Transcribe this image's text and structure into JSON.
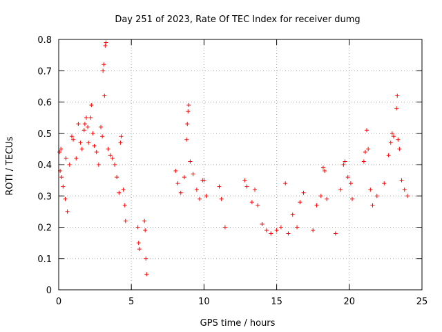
{
  "chart_data": {
    "type": "scatter",
    "title": "Day 251 of 2023, Rate Of TEC Index for receiver dumg",
    "xlabel": "GPS time / hours",
    "ylabel": "ROTI / TECUs",
    "xlim": [
      0,
      25
    ],
    "ylim": [
      0,
      0.8
    ],
    "xticks": [
      0,
      5,
      10,
      15,
      20,
      25
    ],
    "yticks": [
      0,
      0.1,
      0.2,
      0.3,
      0.4,
      0.5,
      0.6,
      0.7,
      0.8
    ],
    "xtick_labels": [
      "0",
      "5",
      "10",
      "15",
      "20",
      "25"
    ],
    "ytick_labels": [
      "0",
      "0.1",
      "0.2",
      "0.3",
      "0.4",
      "0.5",
      "0.6",
      "0.7",
      "0.8"
    ],
    "grid": true,
    "marker": "+",
    "marker_color": "#ff0000",
    "series": [
      {
        "points": [
          [
            0.05,
            0.44
          ],
          [
            0.1,
            0.38
          ],
          [
            0.15,
            0.45
          ],
          [
            0.2,
            0.36
          ],
          [
            0.3,
            0.33
          ],
          [
            0.45,
            0.29
          ],
          [
            0.6,
            0.25
          ],
          [
            0.5,
            0.42
          ],
          [
            0.75,
            0.4
          ],
          [
            0.9,
            0.49
          ],
          [
            1.0,
            0.48
          ],
          [
            1.2,
            0.42
          ],
          [
            1.35,
            0.53
          ],
          [
            1.5,
            0.47
          ],
          [
            1.6,
            0.45
          ],
          [
            1.75,
            0.51
          ],
          [
            1.8,
            0.53
          ],
          [
            1.9,
            0.55
          ],
          [
            2.0,
            0.52
          ],
          [
            2.05,
            0.47
          ],
          [
            2.2,
            0.55
          ],
          [
            2.25,
            0.59
          ],
          [
            2.35,
            0.5
          ],
          [
            2.45,
            0.46
          ],
          [
            2.6,
            0.44
          ],
          [
            2.75,
            0.4
          ],
          [
            2.9,
            0.52
          ],
          [
            3.0,
            0.49
          ],
          [
            3.05,
            0.7
          ],
          [
            3.1,
            0.72
          ],
          [
            3.15,
            0.62
          ],
          [
            3.2,
            0.78
          ],
          [
            3.25,
            0.79
          ],
          [
            3.4,
            0.45
          ],
          [
            3.55,
            0.43
          ],
          [
            3.7,
            0.42
          ],
          [
            3.85,
            0.4
          ],
          [
            4.0,
            0.36
          ],
          [
            4.15,
            0.31
          ],
          [
            4.25,
            0.47
          ],
          [
            4.3,
            0.49
          ],
          [
            4.45,
            0.32
          ],
          [
            4.55,
            0.27
          ],
          [
            4.6,
            0.22
          ],
          [
            5.45,
            0.2
          ],
          [
            5.5,
            0.15
          ],
          [
            5.55,
            0.13
          ],
          [
            5.9,
            0.22
          ],
          [
            5.95,
            0.19
          ],
          [
            6.0,
            0.1
          ],
          [
            6.05,
            0.05
          ],
          [
            8.05,
            0.38
          ],
          [
            8.2,
            0.34
          ],
          [
            8.4,
            0.31
          ],
          [
            8.65,
            0.36
          ],
          [
            8.8,
            0.48
          ],
          [
            8.85,
            0.53
          ],
          [
            8.9,
            0.57
          ],
          [
            8.95,
            0.59
          ],
          [
            9.05,
            0.41
          ],
          [
            9.25,
            0.37
          ],
          [
            9.5,
            0.32
          ],
          [
            9.7,
            0.29
          ],
          [
            9.9,
            0.35
          ],
          [
            10.0,
            0.35
          ],
          [
            10.15,
            0.3
          ],
          [
            11.05,
            0.33
          ],
          [
            11.2,
            0.29
          ],
          [
            11.45,
            0.2
          ],
          [
            12.8,
            0.35
          ],
          [
            12.95,
            0.33
          ],
          [
            13.3,
            0.28
          ],
          [
            13.5,
            0.32
          ],
          [
            13.7,
            0.27
          ],
          [
            14.0,
            0.21
          ],
          [
            14.3,
            0.19
          ],
          [
            14.6,
            0.18
          ],
          [
            15.0,
            0.19
          ],
          [
            15.3,
            0.2
          ],
          [
            15.6,
            0.34
          ],
          [
            15.8,
            0.18
          ],
          [
            16.1,
            0.24
          ],
          [
            16.4,
            0.2
          ],
          [
            16.6,
            0.28
          ],
          [
            16.85,
            0.31
          ],
          [
            17.5,
            0.19
          ],
          [
            17.75,
            0.27
          ],
          [
            18.05,
            0.3
          ],
          [
            18.2,
            0.39
          ],
          [
            18.3,
            0.38
          ],
          [
            18.45,
            0.29
          ],
          [
            19.05,
            0.18
          ],
          [
            19.4,
            0.32
          ],
          [
            19.6,
            0.4
          ],
          [
            19.7,
            0.41
          ],
          [
            19.9,
            0.36
          ],
          [
            20.1,
            0.34
          ],
          [
            20.2,
            0.29
          ],
          [
            21.0,
            0.41
          ],
          [
            21.1,
            0.44
          ],
          [
            21.2,
            0.51
          ],
          [
            21.3,
            0.45
          ],
          [
            21.45,
            0.32
          ],
          [
            21.6,
            0.27
          ],
          [
            21.9,
            0.3
          ],
          [
            22.4,
            0.34
          ],
          [
            22.7,
            0.43
          ],
          [
            22.85,
            0.47
          ],
          [
            22.95,
            0.5
          ],
          [
            23.05,
            0.49
          ],
          [
            23.25,
            0.58
          ],
          [
            23.3,
            0.62
          ],
          [
            23.35,
            0.48
          ],
          [
            23.45,
            0.45
          ],
          [
            23.6,
            0.35
          ],
          [
            23.8,
            0.32
          ],
          [
            24.0,
            0.3
          ]
        ]
      }
    ]
  }
}
